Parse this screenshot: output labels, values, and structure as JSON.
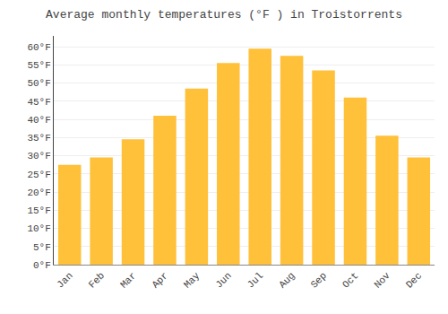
{
  "chart_data": {
    "type": "bar",
    "title": "Average monthly temperatures (°F ) in Troistorrents",
    "categories": [
      "Jan",
      "Feb",
      "Mar",
      "Apr",
      "May",
      "Jun",
      "Jul",
      "Aug",
      "Sep",
      "Oct",
      "Nov",
      "Dec"
    ],
    "values": [
      27.5,
      29.5,
      34.5,
      41.0,
      48.5,
      55.5,
      59.5,
      57.5,
      53.5,
      46.0,
      35.5,
      29.5
    ],
    "color": "#FFC03A",
    "ylim": [
      0,
      63
    ],
    "yticks": [
      {
        "value": 0,
        "label": "0°F"
      },
      {
        "value": 5,
        "label": "5°F"
      },
      {
        "value": 10,
        "label": "10°F"
      },
      {
        "value": 15,
        "label": "15°F"
      },
      {
        "value": 20,
        "label": "20°F"
      },
      {
        "value": 25,
        "label": "25°F"
      },
      {
        "value": 30,
        "label": "30°F"
      },
      {
        "value": 35,
        "label": "35°F"
      },
      {
        "value": 40,
        "label": "40°F"
      },
      {
        "value": 45,
        "label": "45°F"
      },
      {
        "value": 50,
        "label": "50°F"
      },
      {
        "value": 55,
        "label": "55°F"
      },
      {
        "value": 60,
        "label": "60°F"
      }
    ],
    "grid": true
  }
}
